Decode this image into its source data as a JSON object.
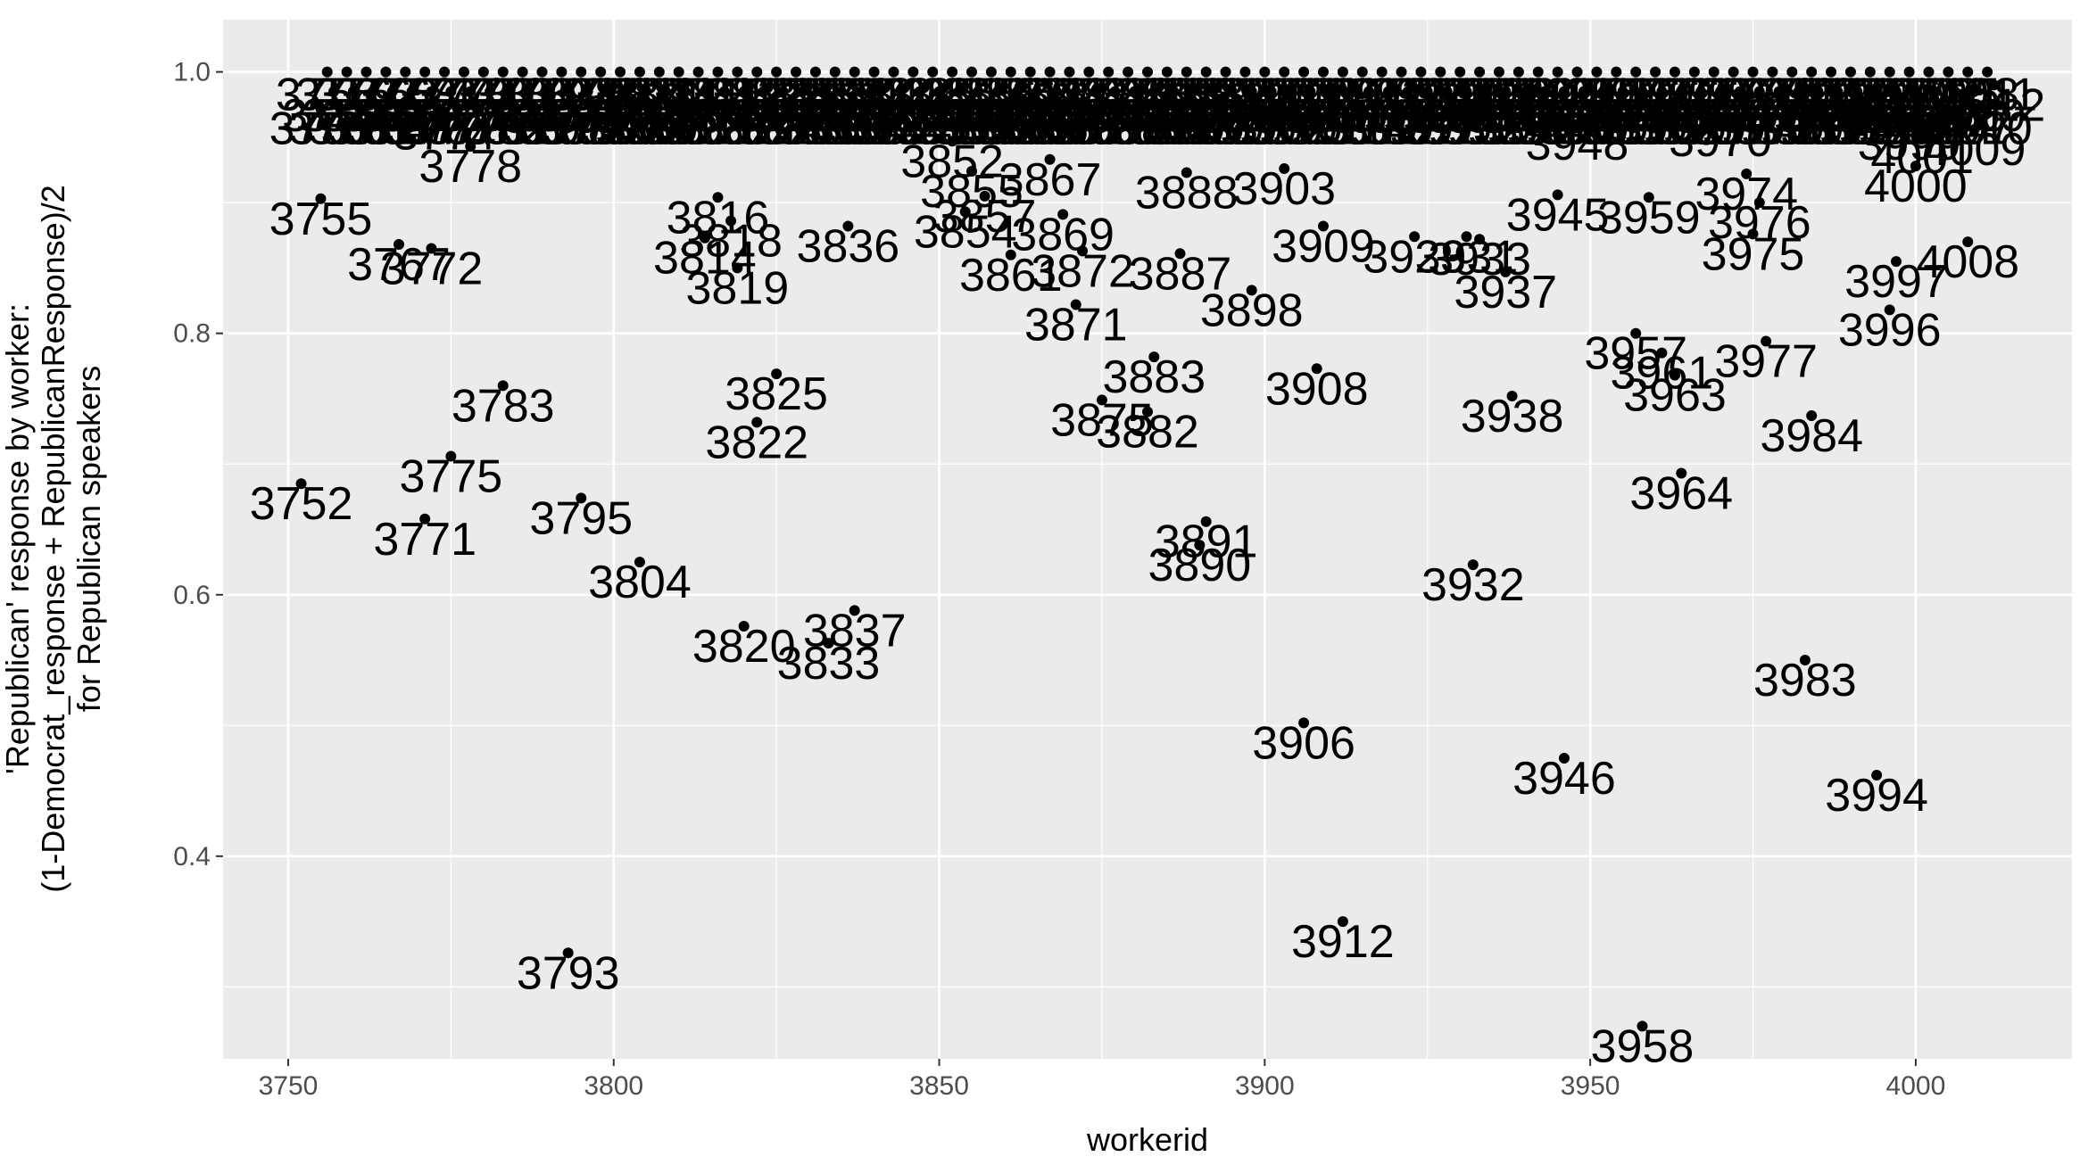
{
  "chart_data": {
    "type": "scatter",
    "xlabel": "workerid",
    "ylabel_lines": [
      "'Republican' response by worker:",
      "(1-Democrat_response + RepublicanResponse)/2",
      "for Republican speakers"
    ],
    "xlim": [
      3740,
      4024
    ],
    "ylim": [
      0.245,
      1.04
    ],
    "x_ticks": [
      3750,
      3800,
      3850,
      3900,
      3950,
      4000
    ],
    "x_tick_labels": [
      "3750",
      "3800",
      "3850",
      "3900",
      "3950",
      "4000"
    ],
    "y_ticks": [
      0.4,
      0.6,
      0.8,
      1.0
    ],
    "y_tick_labels": [
      "0.4",
      "0.6",
      "0.8",
      "1.0"
    ],
    "grid": true,
    "background": "#ebebeb",
    "grid_color": "#ffffff",
    "point_color": "#000000",
    "points": [
      {
        "x": 3752,
        "y": 0.685,
        "label": "3752"
      },
      {
        "x": 3755,
        "y": 0.903,
        "label": "3755"
      },
      {
        "x": 3767,
        "y": 0.868,
        "label": "3767"
      },
      {
        "x": 3771,
        "y": 0.658,
        "label": "3771"
      },
      {
        "x": 3772,
        "y": 0.865,
        "label": "3772"
      },
      {
        "x": 3774,
        "y": 0.968,
        "label": "3774"
      },
      {
        "x": 3775,
        "y": 0.706,
        "label": "3775"
      },
      {
        "x": 3778,
        "y": 0.943,
        "label": "3778"
      },
      {
        "x": 3783,
        "y": 0.76,
        "label": "3783"
      },
      {
        "x": 3793,
        "y": 0.326,
        "label": "3793"
      },
      {
        "x": 3795,
        "y": 0.674,
        "label": "3795"
      },
      {
        "x": 3804,
        "y": 0.625,
        "label": "3804"
      },
      {
        "x": 3814,
        "y": 0.873,
        "label": "3814"
      },
      {
        "x": 3816,
        "y": 0.904,
        "label": "3816"
      },
      {
        "x": 3818,
        "y": 0.886,
        "label": "3818"
      },
      {
        "x": 3819,
        "y": 0.85,
        "label": "3819"
      },
      {
        "x": 3820,
        "y": 0.576,
        "label": "3820"
      },
      {
        "x": 3822,
        "y": 0.732,
        "label": "3822"
      },
      {
        "x": 3825,
        "y": 0.769,
        "label": "3825"
      },
      {
        "x": 3833,
        "y": 0.563,
        "label": "3833"
      },
      {
        "x": 3836,
        "y": 0.882,
        "label": "3836"
      },
      {
        "x": 3837,
        "y": 0.588,
        "label": "3837"
      },
      {
        "x": 3852,
        "y": 0.947,
        "label": "3852"
      },
      {
        "x": 3854,
        "y": 0.893,
        "label": "3854"
      },
      {
        "x": 3855,
        "y": 0.924,
        "label": "3855"
      },
      {
        "x": 3857,
        "y": 0.905,
        "label": "3857"
      },
      {
        "x": 3861,
        "y": 0.86,
        "label": "3861"
      },
      {
        "x": 3867,
        "y": 0.933,
        "label": "3867"
      },
      {
        "x": 3869,
        "y": 0.891,
        "label": "3869"
      },
      {
        "x": 3871,
        "y": 0.822,
        "label": "3871"
      },
      {
        "x": 3872,
        "y": 0.863,
        "label": "3872"
      },
      {
        "x": 3875,
        "y": 0.749,
        "label": "3875"
      },
      {
        "x": 3882,
        "y": 0.74,
        "label": "3882"
      },
      {
        "x": 3883,
        "y": 0.782,
        "label": "3883"
      },
      {
        "x": 3887,
        "y": 0.861,
        "label": "3887"
      },
      {
        "x": 3888,
        "y": 0.923,
        "label": "3888"
      },
      {
        "x": 3890,
        "y": 0.638,
        "label": "3890"
      },
      {
        "x": 3891,
        "y": 0.656,
        "label": "3891"
      },
      {
        "x": 3898,
        "y": 0.833,
        "label": "3898"
      },
      {
        "x": 3903,
        "y": 0.926,
        "label": "3903"
      },
      {
        "x": 3906,
        "y": 0.502,
        "label": "3906"
      },
      {
        "x": 3908,
        "y": 0.773,
        "label": "3908"
      },
      {
        "x": 3909,
        "y": 0.882,
        "label": "3909"
      },
      {
        "x": 3912,
        "y": 0.35,
        "label": "3912"
      },
      {
        "x": 3923,
        "y": 0.874,
        "label": "3923"
      },
      {
        "x": 3931,
        "y": 0.874,
        "label": "3931"
      },
      {
        "x": 3932,
        "y": 0.623,
        "label": "3932"
      },
      {
        "x": 3933,
        "y": 0.872,
        "label": "3933"
      },
      {
        "x": 3937,
        "y": 0.847,
        "label": "3937"
      },
      {
        "x": 3938,
        "y": 0.752,
        "label": "3938"
      },
      {
        "x": 3945,
        "y": 0.906,
        "label": "3945"
      },
      {
        "x": 3946,
        "y": 0.475,
        "label": "3946"
      },
      {
        "x": 3948,
        "y": 0.96,
        "label": "3948"
      },
      {
        "x": 3957,
        "y": 0.8,
        "label": "3957"
      },
      {
        "x": 3958,
        "y": 0.27,
        "label": "3958"
      },
      {
        "x": 3959,
        "y": 0.904,
        "label": "3959"
      },
      {
        "x": 3961,
        "y": 0.785,
        "label": "3961"
      },
      {
        "x": 3963,
        "y": 0.768,
        "label": "3963"
      },
      {
        "x": 3964,
        "y": 0.693,
        "label": "3964"
      },
      {
        "x": 3970,
        "y": 0.963,
        "label": "3970"
      },
      {
        "x": 3974,
        "y": 0.922,
        "label": "3974"
      },
      {
        "x": 3975,
        "y": 0.876,
        "label": "3975"
      },
      {
        "x": 3976,
        "y": 0.9,
        "label": "3976"
      },
      {
        "x": 3977,
        "y": 0.794,
        "label": "3977"
      },
      {
        "x": 3983,
        "y": 0.55,
        "label": "3983"
      },
      {
        "x": 3984,
        "y": 0.737,
        "label": "3984"
      },
      {
        "x": 3994,
        "y": 0.462,
        "label": "3994"
      },
      {
        "x": 3996,
        "y": 0.818,
        "label": "3996"
      },
      {
        "x": 3997,
        "y": 0.855,
        "label": "3997"
      },
      {
        "x": 3999,
        "y": 0.96,
        "label": "3999"
      },
      {
        "x": 4000,
        "y": 0.928,
        "label": "4000"
      },
      {
        "x": 4001,
        "y": 0.95,
        "label": "4001"
      },
      {
        "x": 4008,
        "y": 0.87,
        "label": "4008"
      },
      {
        "x": 4009,
        "y": 0.956,
        "label": "4009"
      },
      {
        "x": 4012,
        "y": 0.99,
        "label": "4012"
      }
    ],
    "dense_top": {
      "x_start": 3755,
      "x_end": 4011,
      "y_values": [
        1.0,
        0.985,
        0.972
      ],
      "label_y_values": [
        0.983,
        0.967,
        0.957
      ]
    }
  }
}
